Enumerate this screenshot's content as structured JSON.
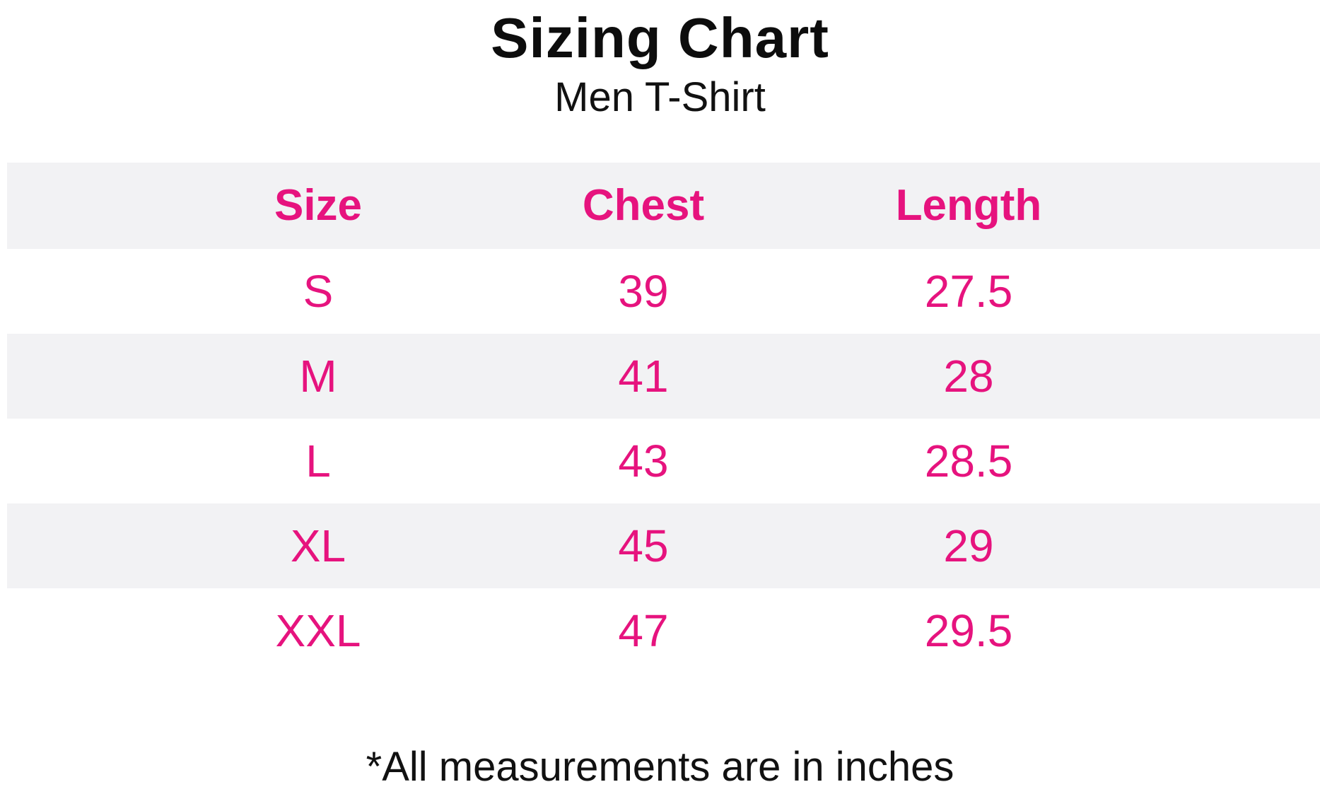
{
  "header": {
    "title": "Sizing Chart",
    "subtitle": "Men T-Shirt"
  },
  "footnote": "*All measurements are in inches",
  "colors": {
    "accent_pink": "#e6137e",
    "stripe_gray": "#f2f2f4",
    "text_black": "#111111",
    "background": "#ffffff"
  },
  "chart_data": {
    "type": "table",
    "title": "Sizing Chart",
    "subtitle": "Men T-Shirt",
    "columns": [
      "Size",
      "Chest",
      "Length"
    ],
    "rows": [
      {
        "size": "S",
        "chest": "39",
        "length": "27.5"
      },
      {
        "size": "M",
        "chest": "41",
        "length": "28"
      },
      {
        "size": "L",
        "chest": "43",
        "length": "28.5"
      },
      {
        "size": "XL",
        "chest": "45",
        "length": "29"
      },
      {
        "size": "XXL",
        "chest": "47",
        "length": "29.5"
      }
    ],
    "note": "*All measurements are in inches",
    "units": "inches"
  }
}
